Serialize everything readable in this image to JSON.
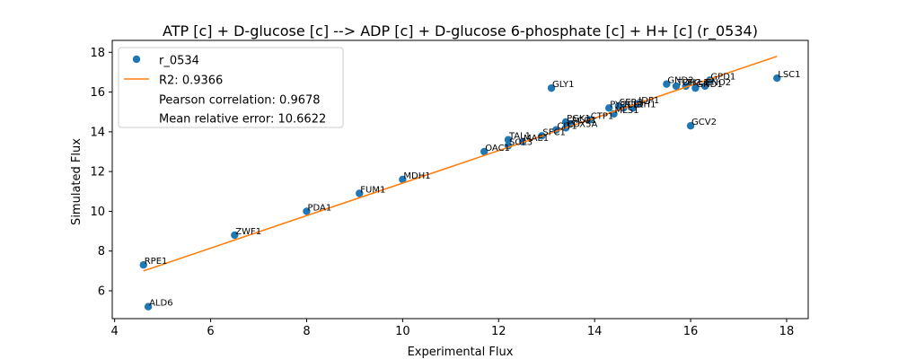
{
  "chart_data": {
    "type": "scatter",
    "title": "ATP [c] + D-glucose [c] --> ADP [c] + D-glucose 6-phosphate [c] + H+ [c] (r_0534)",
    "xlabel": "Experimental Flux",
    "ylabel": "Simulated Flux",
    "xlim": [
      3.95,
      18.45
    ],
    "ylim": [
      4.6,
      18.6
    ],
    "xticks": [
      4,
      6,
      8,
      10,
      12,
      14,
      16,
      18
    ],
    "yticks": [
      6,
      8,
      10,
      12,
      14,
      16,
      18
    ],
    "grid": false,
    "legend_position": "top-left",
    "colors": {
      "points": "#1f77b4",
      "fit": "#ff7f0e"
    },
    "series": [
      {
        "name": "r_0534",
        "points": [
          {
            "label": "RPE1",
            "x": 4.6,
            "y": 7.3
          },
          {
            "label": "ALD6",
            "x": 4.7,
            "y": 5.2
          },
          {
            "label": "ZWF1",
            "x": 6.5,
            "y": 8.8
          },
          {
            "label": "PDA1",
            "x": 8.0,
            "y": 10.0
          },
          {
            "label": "FUM1",
            "x": 9.1,
            "y": 10.9
          },
          {
            "label": "MDH1",
            "x": 10.0,
            "y": 11.6
          },
          {
            "label": "OAC1",
            "x": 11.7,
            "y": 13.0
          },
          {
            "label": "TAL1",
            "x": 12.2,
            "y": 13.6
          },
          {
            "label": "SOL3",
            "x": 12.2,
            "y": 13.3
          },
          {
            "label": "MAE1",
            "x": 12.5,
            "y": 13.5
          },
          {
            "label": "SFC1",
            "x": 12.9,
            "y": 13.8
          },
          {
            "label": "CIT1",
            "x": 13.2,
            "y": 14.1
          },
          {
            "label": "COX5A",
            "x": 13.4,
            "y": 14.2
          },
          {
            "label": "PGK1",
            "x": 13.4,
            "y": 14.5
          },
          {
            "label": "ACO1",
            "x": 13.5,
            "y": 14.4
          },
          {
            "label": "CTP1",
            "x": 13.9,
            "y": 14.6
          },
          {
            "label": "PYC1",
            "x": 14.3,
            "y": 15.2
          },
          {
            "label": "MLS1",
            "x": 14.4,
            "y": 14.9
          },
          {
            "label": "SER3",
            "x": 14.5,
            "y": 15.3
          },
          {
            "label": "ICL1",
            "x": 14.6,
            "y": 15.2
          },
          {
            "label": "IDH1",
            "x": 14.8,
            "y": 15.2
          },
          {
            "label": "IDP1",
            "x": 14.9,
            "y": 15.4
          },
          {
            "label": "GLY1",
            "x": 13.1,
            "y": 16.2
          },
          {
            "label": "GND2",
            "x": 15.5,
            "y": 16.4
          },
          {
            "label": "TDH1",
            "x": 15.7,
            "y": 16.3
          },
          {
            "label": "TKL1",
            "x": 15.9,
            "y": 16.3
          },
          {
            "label": "GCV2",
            "x": 16.0,
            "y": 14.3
          },
          {
            "label": "GND1",
            "x": 16.1,
            "y": 16.2
          },
          {
            "label": "ENO2",
            "x": 16.3,
            "y": 16.3
          },
          {
            "label": "GPD1",
            "x": 16.4,
            "y": 16.6
          },
          {
            "label": "LSC1",
            "x": 17.8,
            "y": 16.7
          }
        ]
      },
      {
        "name": "R2: 0.9366",
        "type": "line",
        "x": [
          4.6,
          17.8
        ],
        "y": [
          7.0,
          17.8
        ]
      }
    ],
    "legend": [
      "r_0534",
      "R2: 0.9366",
      "Pearson correlation: 0.9678",
      "Mean relative error: 10.6622"
    ]
  }
}
